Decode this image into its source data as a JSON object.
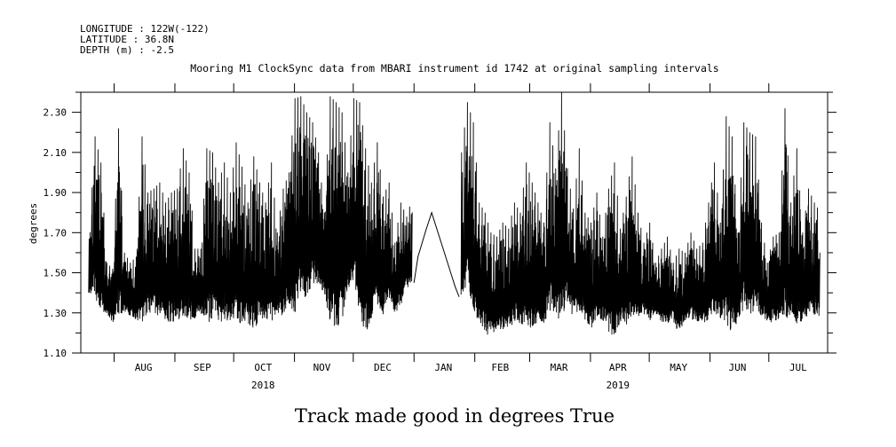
{
  "header": {
    "lines": [
      "LONGITUDE : 122W(-122)",
      "LATITUDE : 36.8N",
      "DEPTH (m) : -2.5"
    ]
  },
  "chart_data": {
    "type": "line",
    "title": "Mooring M1 ClockSync data from MBARI instrument id 1742 at original sampling intervals",
    "ylabel": "degrees",
    "caption": "Track made good in degrees True",
    "ylim": [
      1.1,
      2.4
    ],
    "yticks": [
      "1.10",
      "1.30",
      "1.50",
      "1.70",
      "1.90",
      "2.10",
      "2.30"
    ],
    "xlim": [
      "2018-07-15",
      "2019-07-31"
    ],
    "months": [
      {
        "label": "AUG",
        "center": "2018-08-16"
      },
      {
        "label": "SEP",
        "center": "2018-09-15"
      },
      {
        "label": "OCT",
        "center": "2018-10-16"
      },
      {
        "label": "NOV",
        "center": "2018-11-15"
      },
      {
        "label": "DEC",
        "center": "2018-12-16"
      },
      {
        "label": "JAN",
        "center": "2019-01-16"
      },
      {
        "label": "FEB",
        "center": "2019-02-14"
      },
      {
        "label": "MAR",
        "center": "2019-03-16"
      },
      {
        "label": "APR",
        "center": "2019-04-15"
      },
      {
        "label": "MAY",
        "center": "2019-05-16"
      },
      {
        "label": "JUN",
        "center": "2019-06-15"
      },
      {
        "label": "JUL",
        "center": "2019-07-16"
      }
    ],
    "years": [
      {
        "label": "2018",
        "center": "2018-10-16"
      },
      {
        "label": "2019",
        "center": "2019-04-15"
      }
    ],
    "series": [
      {
        "segments": [
          {
            "x": [
              "2018-07-19",
              "2018-07-22",
              "2018-07-25",
              "2018-07-28",
              "2018-07-31",
              "2018-08-03",
              "2018-08-06",
              "2018-08-09",
              "2018-08-12",
              "2018-08-15",
              "2018-08-18",
              "2018-08-21",
              "2018-08-24",
              "2018-08-27",
              "2018-08-30",
              "2018-09-02",
              "2018-09-05",
              "2018-09-08",
              "2018-09-11",
              "2018-09-14",
              "2018-09-17",
              "2018-09-20",
              "2018-09-23",
              "2018-09-26",
              "2018-09-29",
              "2018-10-02",
              "2018-10-05",
              "2018-10-08",
              "2018-10-11",
              "2018-10-14",
              "2018-10-17",
              "2018-10-20",
              "2018-10-23",
              "2018-10-26",
              "2018-10-29",
              "2018-11-01",
              "2018-11-04",
              "2018-11-07",
              "2018-11-10",
              "2018-11-13",
              "2018-11-16",
              "2018-11-19",
              "2018-11-22",
              "2018-11-25",
              "2018-11-28",
              "2018-12-01",
              "2018-12-04",
              "2018-12-07",
              "2018-12-10",
              "2018-12-13",
              "2018-12-16",
              "2018-12-19",
              "2018-12-22",
              "2018-12-25",
              "2018-12-28",
              "2018-12-31"
            ],
            "min": [
              1.4,
              1.38,
              1.3,
              1.3,
              1.25,
              1.28,
              1.3,
              1.28,
              1.26,
              1.25,
              1.3,
              1.27,
              1.28,
              1.26,
              1.25,
              1.26,
              1.28,
              1.25,
              1.27,
              1.3,
              1.24,
              1.27,
              1.25,
              1.26,
              1.26,
              1.27,
              1.22,
              1.25,
              1.21,
              1.24,
              1.26,
              1.25,
              1.3,
              1.28,
              1.35,
              1.28,
              1.4,
              1.35,
              1.42,
              1.45,
              1.4,
              1.25,
              1.22,
              1.24,
              1.4,
              1.45,
              1.3,
              1.2,
              1.25,
              1.35,
              1.25,
              1.38,
              1.3,
              1.32,
              1.42,
              1.45
            ],
            "max": [
              1.67,
              2.18,
              2.05,
              1.55,
              1.52,
              2.22,
              1.6,
              1.55,
              1.58,
              2.18,
              1.9,
              1.92,
              1.95,
              1.85,
              1.9,
              1.92,
              2.12,
              2.0,
              1.62,
              1.62,
              2.12,
              2.1,
              1.95,
              2.05,
              1.9,
              2.15,
              2.03,
              1.85,
              2.08,
              1.95,
              1.85,
              2.05,
              1.7,
              1.92,
              2.0,
              2.37,
              2.38,
              2.3,
              2.25,
              2.1,
              1.8,
              2.38,
              2.35,
              2.3,
              2.0,
              2.37,
              2.35,
              2.12,
              1.95,
              2.15,
              1.88,
              1.95,
              1.65,
              1.85,
              1.78,
              1.88
            ]
          },
          {
            "x": [
              "2019-01-25",
              "2019-01-28",
              "2019-01-31",
              "2019-02-03",
              "2019-02-06",
              "2019-02-09",
              "2019-02-12",
              "2019-02-15",
              "2019-02-18",
              "2019-02-21",
              "2019-02-24",
              "2019-02-27",
              "2019-03-02",
              "2019-03-05",
              "2019-03-08",
              "2019-03-11",
              "2019-03-14",
              "2019-03-17",
              "2019-03-20",
              "2019-03-23",
              "2019-03-26",
              "2019-03-29",
              "2019-04-01",
              "2019-04-04",
              "2019-04-07",
              "2019-04-10",
              "2019-04-13",
              "2019-04-16",
              "2019-04-19",
              "2019-04-22",
              "2019-04-25",
              "2019-04-28",
              "2019-05-01",
              "2019-05-04",
              "2019-05-07",
              "2019-05-10",
              "2019-05-13",
              "2019-05-16",
              "2019-05-19",
              "2019-05-22",
              "2019-05-25",
              "2019-05-28",
              "2019-05-31",
              "2019-06-03",
              "2019-06-06",
              "2019-06-09",
              "2019-06-12",
              "2019-06-15",
              "2019-06-18",
              "2019-06-21",
              "2019-06-24",
              "2019-06-27",
              "2019-06-30",
              "2019-07-03",
              "2019-07-06",
              "2019-07-09",
              "2019-07-12",
              "2019-07-15",
              "2019-07-18",
              "2019-07-21",
              "2019-07-24",
              "2019-07-27"
            ],
            "min": [
              1.35,
              1.45,
              1.3,
              1.25,
              1.2,
              1.18,
              1.22,
              1.2,
              1.22,
              1.25,
              1.25,
              1.22,
              1.22,
              1.25,
              1.22,
              1.3,
              1.3,
              1.25,
              1.35,
              1.28,
              1.3,
              1.27,
              1.22,
              1.25,
              1.26,
              1.2,
              1.18,
              1.25,
              1.23,
              1.25,
              1.28,
              1.3,
              1.25,
              1.3,
              1.25,
              1.24,
              1.27,
              1.18,
              1.26,
              1.27,
              1.25,
              1.24,
              1.25,
              1.3,
              1.28,
              1.22,
              1.21,
              1.25,
              1.3,
              1.28,
              1.32,
              1.28,
              1.26,
              1.25,
              1.27,
              1.27,
              1.28,
              1.24,
              1.25,
              1.27,
              1.29,
              1.28
            ],
            "max": [
              2.1,
              2.35,
              2.25,
              1.85,
              1.8,
              1.7,
              1.68,
              1.75,
              1.72,
              1.85,
              1.8,
              2.05,
              1.95,
              1.85,
              1.75,
              2.25,
              2.02,
              2.4,
              2.02,
              1.82,
              2.12,
              1.8,
              1.75,
              1.9,
              1.68,
              1.92,
              2.05,
              1.72,
              1.88,
              2.08,
              1.8,
              1.65,
              1.75,
              1.55,
              1.62,
              1.68,
              1.55,
              1.62,
              1.6,
              1.7,
              1.62,
              1.65,
              1.85,
              2.05,
              1.75,
              2.28,
              2.18,
              1.7,
              2.25,
              2.2,
              2.18,
              1.75,
              1.55,
              1.68,
              1.7,
              2.32,
              1.85,
              2.12,
              1.7,
              1.92,
              1.85,
              1.8
            ]
          }
        ],
        "gap_bridge": {
          "x": [
            "2019-01-01",
            "2019-01-03",
            "2019-01-07",
            "2019-01-10",
            "2019-01-22",
            "2019-01-24"
          ],
          "y": [
            1.45,
            1.58,
            1.71,
            1.8,
            1.43,
            1.38
          ]
        }
      }
    ]
  }
}
